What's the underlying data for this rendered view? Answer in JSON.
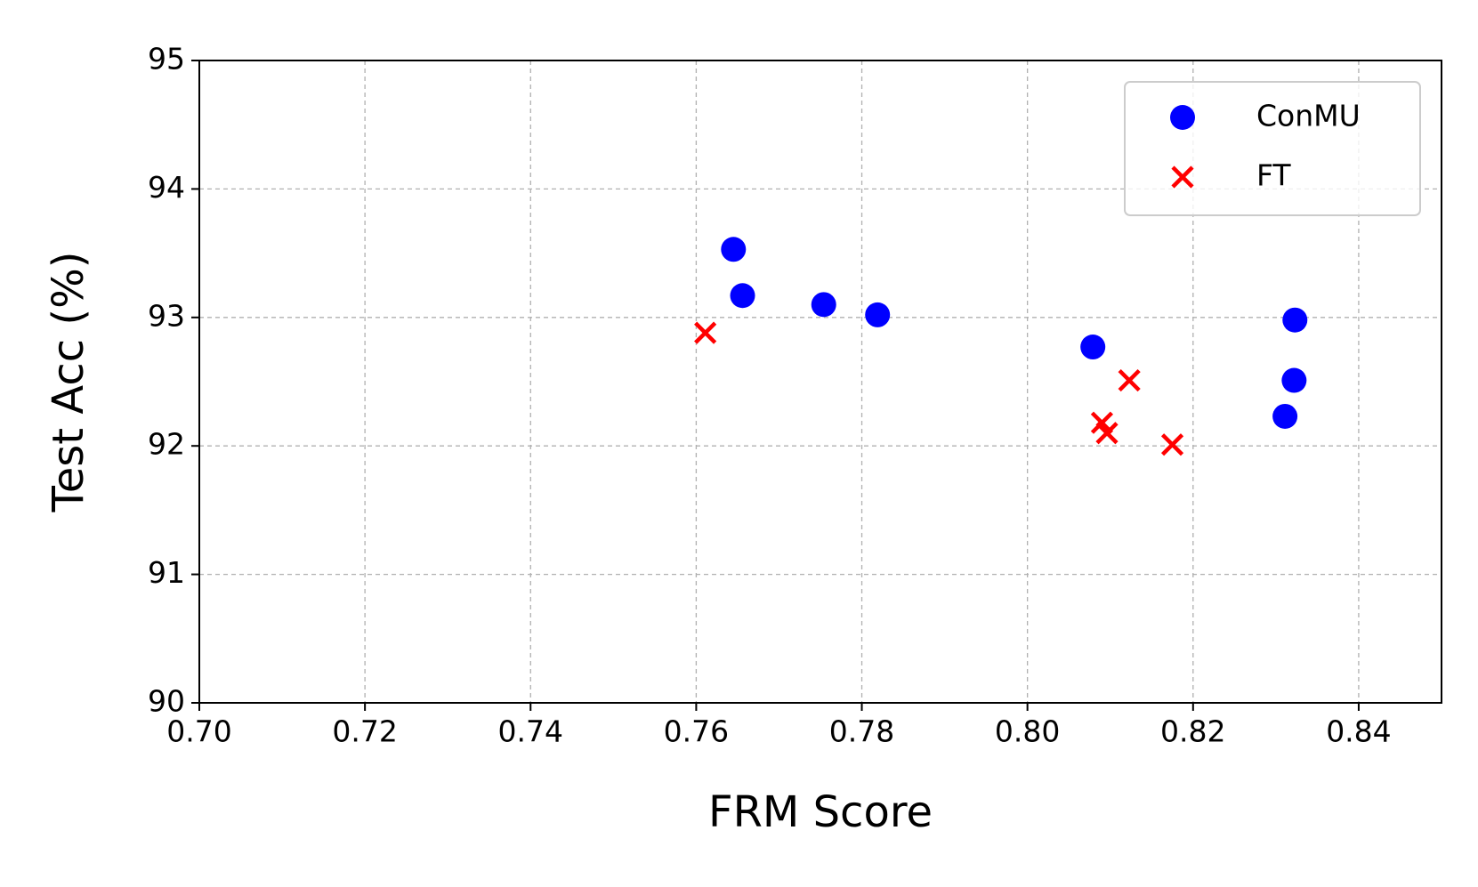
{
  "chart_data": {
    "type": "scatter",
    "xlabel": "FRM Score",
    "ylabel": "Test Acc (%)",
    "xlim": [
      0.7,
      0.85
    ],
    "xticks": [
      {
        "value": 0.7,
        "label": "0.70"
      },
      0.72,
      0.74,
      0.76,
      0.78,
      {
        "value": 0.8,
        "label": "0.80"
      },
      0.82,
      0.84
    ],
    "ylim": [
      90,
      95
    ],
    "yticks": [
      90,
      91,
      92,
      93,
      94,
      95
    ],
    "grid": true,
    "legend": "upper right",
    "series": [
      {
        "name": "ConMU",
        "color": "#0000ff",
        "marker": "circle",
        "x": [
          0.7645,
          0.7656,
          0.7754,
          0.7819,
          0.8079,
          0.8323,
          0.8322,
          0.8311
        ],
        "values": [
          93.53,
          93.17,
          93.1,
          93.02,
          92.77,
          92.98,
          92.51,
          92.23
        ]
      },
      {
        "name": "FT",
        "color": "#ff0000",
        "marker": "cross",
        "x": [
          0.7611,
          0.809,
          0.8096,
          0.8123,
          0.8175
        ],
        "values": [
          92.88,
          92.18,
          92.1,
          92.51,
          92.01
        ]
      }
    ]
  }
}
